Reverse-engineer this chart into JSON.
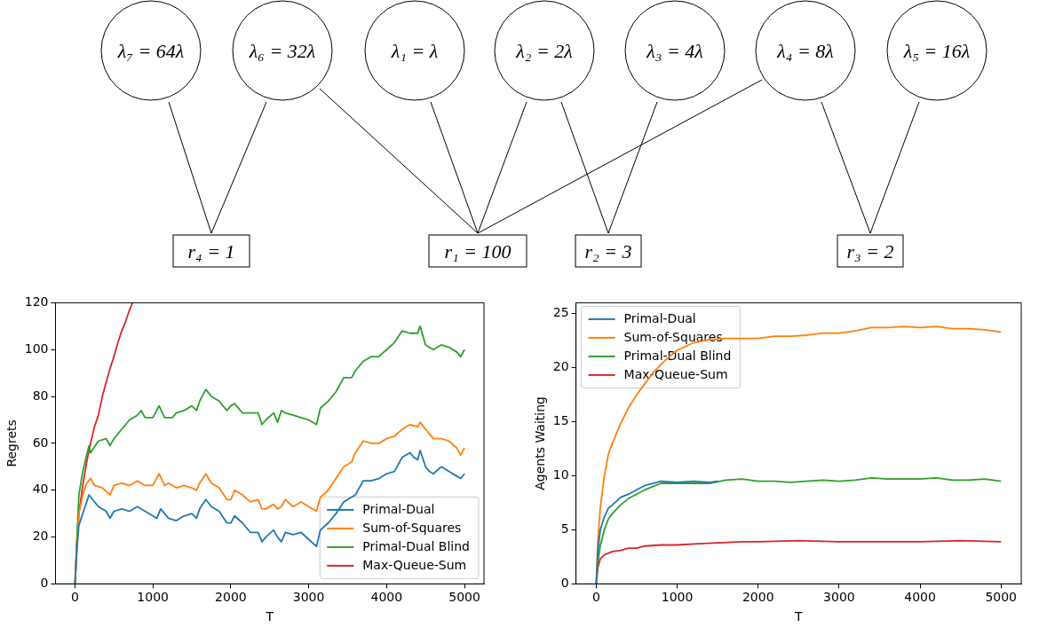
{
  "chart_data": [
    {
      "type": "other",
      "annotations": [
        "λ₇ = 64λ",
        "λ₆ = 32λ",
        "λ₁ = λ",
        "λ₂ = 2λ",
        "λ₃ = 4λ",
        "λ₄ = 8λ",
        "λ₅ = 16λ",
        "r₄ = 1",
        "r₁ = 100",
        "r₂ = 3",
        "r₃ = 2"
      ]
    },
    {
      "type": "line",
      "xlabel": "T",
      "ylabel": "Regrets",
      "xlim": [
        -250,
        5250
      ],
      "ylim": [
        0,
        120
      ],
      "xticks": [
        0,
        1000,
        2000,
        3000,
        4000,
        5000
      ],
      "yticks": [
        0,
        20,
        40,
        60,
        80,
        100,
        120
      ],
      "legend": "bottom right",
      "grid": false,
      "series": [
        {
          "name": "Primal-Dual",
          "color": "#1f77b4",
          "x": [
            0,
            25,
            50,
            100,
            150,
            180,
            250,
            300,
            400,
            450,
            500,
            600,
            700,
            800,
            900,
            1000,
            1050,
            1100,
            1200,
            1300,
            1400,
            1500,
            1560,
            1600,
            1680,
            1750,
            1850,
            1950,
            2000,
            2050,
            2150,
            2250,
            2350,
            2400,
            2450,
            2550,
            2600,
            2650,
            2700,
            2800,
            2900,
            3000,
            3100,
            3150,
            3250,
            3350,
            3450,
            3500,
            3600,
            3700,
            3800,
            3900,
            4000,
            4100,
            4200,
            4300,
            4350,
            4400,
            4430,
            4500,
            4550,
            4600,
            4700,
            4800,
            4900,
            4950,
            5000
          ],
          "values": [
            0,
            15,
            25,
            30,
            35,
            38,
            35,
            33,
            31,
            28,
            31,
            32,
            31,
            33,
            31,
            29,
            28,
            32,
            28,
            27,
            29,
            30,
            28,
            32,
            36,
            33,
            31,
            26,
            26,
            29,
            26,
            22,
            22,
            18,
            20,
            23,
            20,
            18,
            22,
            21,
            22,
            19,
            16,
            23,
            26,
            30,
            35,
            36,
            38,
            44,
            44,
            45,
            47,
            48,
            54,
            56,
            54,
            53,
            57,
            50,
            48,
            47,
            50,
            48,
            46,
            45,
            47
          ]
        },
        {
          "name": "Sum-of-Squares",
          "color": "#ff7f0e",
          "x": [
            0,
            25,
            50,
            100,
            150,
            200,
            250,
            350,
            450,
            500,
            600,
            700,
            800,
            900,
            1000,
            1080,
            1150,
            1200,
            1300,
            1400,
            1500,
            1560,
            1600,
            1680,
            1750,
            1850,
            1950,
            2000,
            2050,
            2150,
            2250,
            2350,
            2400,
            2450,
            2550,
            2600,
            2650,
            2700,
            2800,
            2900,
            3000,
            3100,
            3150,
            3250,
            3350,
            3450,
            3550,
            3600,
            3700,
            3800,
            3900,
            4000,
            4100,
            4200,
            4300,
            4400,
            4430,
            4500,
            4600,
            4700,
            4800,
            4900,
            4950,
            5000
          ],
          "values": [
            0,
            15,
            30,
            38,
            43,
            45,
            42,
            41,
            38,
            42,
            43,
            42,
            44,
            42,
            42,
            47,
            42,
            43,
            41,
            42,
            41,
            40,
            43,
            47,
            43,
            41,
            36,
            36,
            40,
            38,
            35,
            36,
            32,
            32,
            34,
            32,
            33,
            36,
            33,
            35,
            33,
            31,
            37,
            40,
            45,
            50,
            52,
            56,
            61,
            60,
            60,
            62,
            63,
            66,
            68,
            67,
            69,
            66,
            62,
            62,
            61,
            58,
            55,
            58
          ]
        },
        {
          "name": "Primal-Dual Blind",
          "color": "#2ca02c",
          "x": [
            0,
            25,
            50,
            100,
            150,
            180,
            200,
            300,
            400,
            450,
            500,
            600,
            700,
            800,
            850,
            900,
            1000,
            1080,
            1150,
            1250,
            1300,
            1400,
            1500,
            1560,
            1600,
            1680,
            1750,
            1850,
            1950,
            2000,
            2050,
            2150,
            2250,
            2350,
            2400,
            2450,
            2550,
            2600,
            2650,
            2700,
            2800,
            2900,
            3000,
            3100,
            3150,
            3250,
            3350,
            3450,
            3550,
            3600,
            3700,
            3800,
            3900,
            4000,
            4100,
            4200,
            4300,
            4400,
            4430,
            4500,
            4600,
            4700,
            4800,
            4900,
            4950,
            5000
          ],
          "values": [
            0,
            20,
            38,
            48,
            55,
            59,
            56,
            61,
            62,
            59,
            62,
            66,
            70,
            72,
            74,
            71,
            71,
            76,
            71,
            71,
            73,
            74,
            76,
            74,
            78,
            83,
            80,
            78,
            74,
            76,
            77,
            73,
            73,
            73,
            68,
            70,
            73,
            69,
            74,
            73,
            72,
            71,
            70,
            68,
            75,
            78,
            82,
            88,
            88,
            91,
            95,
            97,
            97,
            100,
            103,
            108,
            107,
            107,
            110,
            102,
            100,
            102,
            101,
            99,
            97,
            100
          ]
        },
        {
          "name": "Max-Queue-Sum",
          "color": "#d62728",
          "x": [
            0,
            25,
            50,
            100,
            150,
            200,
            250,
            300,
            350,
            400,
            450,
            500,
            550,
            600,
            650,
            700,
            740
          ],
          "values": [
            0,
            18,
            30,
            42,
            52,
            60,
            67,
            72,
            80,
            86,
            92,
            97,
            103,
            108,
            112,
            117,
            120
          ]
        }
      ]
    },
    {
      "type": "line",
      "xlabel": "T",
      "ylabel": "Agents Waiting",
      "xlim": [
        -250,
        5250
      ],
      "ylim": [
        0,
        26
      ],
      "xticks": [
        0,
        1000,
        2000,
        3000,
        4000,
        5000
      ],
      "yticks": [
        0,
        5,
        10,
        15,
        20,
        25
      ],
      "legend": "top left",
      "grid": false,
      "series": [
        {
          "name": "Primal-Dual",
          "color": "#1f77b4",
          "x": [
            0,
            20,
            50,
            100,
            150,
            200,
            300,
            400,
            500,
            600,
            700,
            800,
            1000,
            1200,
            1400,
            1500
          ],
          "values": [
            0,
            3,
            5,
            6.2,
            7,
            7.3,
            8,
            8.3,
            8.7,
            9.1,
            9.3,
            9.5,
            9.4,
            9.5,
            9.4,
            9.5
          ]
        },
        {
          "name": "Sum-of-Squares",
          "color": "#ff7f0e",
          "x": [
            0,
            20,
            50,
            100,
            150,
            200,
            300,
            400,
            500,
            600,
            700,
            800,
            900,
            1000,
            1200,
            1400,
            1600,
            1800,
            2000,
            2200,
            2400,
            2600,
            2800,
            3000,
            3200,
            3400,
            3600,
            3800,
            4000,
            4200,
            4400,
            4600,
            4800,
            4900,
            5000
          ],
          "values": [
            0,
            4,
            7,
            10,
            12,
            13,
            14.8,
            16.3,
            17.5,
            18.5,
            19.5,
            20.3,
            21,
            21.6,
            22.3,
            22.6,
            22.7,
            22.7,
            22.7,
            22.9,
            22.9,
            23,
            23.2,
            23.2,
            23.4,
            23.7,
            23.7,
            23.8,
            23.7,
            23.8,
            23.6,
            23.6,
            23.5,
            23.4,
            23.3
          ]
        },
        {
          "name": "Primal-Dual Blind",
          "color": "#2ca02c",
          "x": [
            0,
            20,
            50,
            100,
            150,
            200,
            300,
            400,
            500,
            600,
            700,
            800,
            1000,
            1200,
            1400,
            1600,
            1800,
            2000,
            2200,
            2400,
            2600,
            2800,
            3000,
            3200,
            3400,
            3600,
            3800,
            4000,
            4200,
            4400,
            4600,
            4800,
            5000
          ],
          "values": [
            0,
            2,
            3.5,
            5,
            6,
            6.5,
            7.3,
            7.9,
            8.3,
            8.7,
            9,
            9.3,
            9.3,
            9.3,
            9.3,
            9.6,
            9.7,
            9.5,
            9.5,
            9.4,
            9.5,
            9.6,
            9.5,
            9.6,
            9.8,
            9.7,
            9.7,
            9.7,
            9.8,
            9.6,
            9.6,
            9.7,
            9.5
          ]
        },
        {
          "name": "Max-Queue-Sum",
          "color": "#d62728",
          "x": [
            0,
            20,
            50,
            100,
            200,
            300,
            400,
            500,
            600,
            800,
            1000,
            1200,
            1500,
            1800,
            2000,
            2500,
            3000,
            3500,
            4000,
            4500,
            5000
          ],
          "values": [
            0,
            1.5,
            2.3,
            2.7,
            3,
            3.1,
            3.3,
            3.3,
            3.5,
            3.6,
            3.6,
            3.7,
            3.8,
            3.9,
            3.9,
            4,
            3.9,
            3.9,
            3.9,
            4,
            3.9
          ]
        }
      ]
    }
  ]
}
